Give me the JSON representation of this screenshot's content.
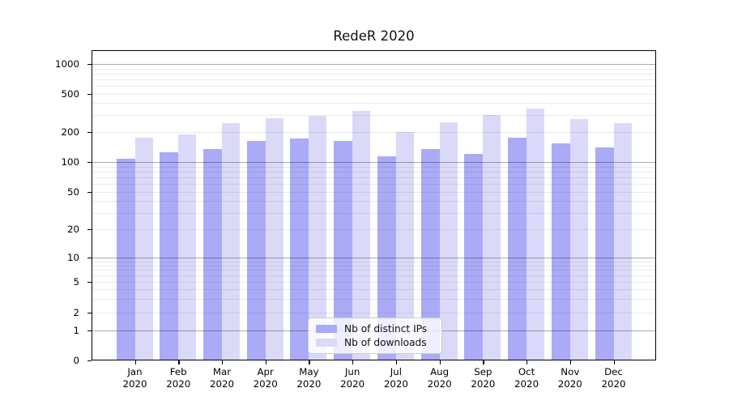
{
  "title": "RedeR 2020",
  "colors": {
    "ips_bar": "#aaaaf7",
    "downloads_bar": "#dadaf8",
    "grid_major": "#adadad",
    "grid_minor": "#ededed",
    "axis": "#000000"
  },
  "legend": {
    "items": [
      {
        "label": "Nb of distinct IPs",
        "color_key": "ips_bar"
      },
      {
        "label": "Nb of downloads",
        "color_key": "downloads_bar"
      }
    ]
  },
  "y_axis": {
    "ticks": [
      {
        "label": "1000",
        "value": 1000
      },
      {
        "label": "500",
        "value": 500
      },
      {
        "label": "200",
        "value": 200
      },
      {
        "label": "100",
        "value": 100
      },
      {
        "label": "50",
        "value": 50
      },
      {
        "label": "20",
        "value": 20
      },
      {
        "label": "10",
        "value": 10
      },
      {
        "label": "5",
        "value": 5
      },
      {
        "label": "2",
        "value": 2
      },
      {
        "label": "1",
        "value": 1
      },
      {
        "label": "0",
        "value": 0
      }
    ],
    "major_grid_values": [
      1,
      10,
      100,
      1000
    ],
    "minor_grid_values": [
      2,
      3,
      4,
      5,
      6,
      7,
      8,
      9,
      20,
      30,
      40,
      50,
      60,
      70,
      80,
      90,
      200,
      300,
      400,
      500,
      600,
      700,
      800,
      900
    ]
  },
  "x_axis": {
    "categories": [
      {
        "month": "Jan",
        "year": "2020"
      },
      {
        "month": "Feb",
        "year": "2020"
      },
      {
        "month": "Mar",
        "year": "2020"
      },
      {
        "month": "Apr",
        "year": "2020"
      },
      {
        "month": "May",
        "year": "2020"
      },
      {
        "month": "Jun",
        "year": "2020"
      },
      {
        "month": "Jul",
        "year": "2020"
      },
      {
        "month": "Aug",
        "year": "2020"
      },
      {
        "month": "Sep",
        "year": "2020"
      },
      {
        "month": "Oct",
        "year": "2020"
      },
      {
        "month": "Nov",
        "year": "2020"
      },
      {
        "month": "Dec",
        "year": "2020"
      }
    ]
  },
  "chart_data": {
    "type": "bar",
    "title": "RedeR 2020",
    "categories": [
      "Jan 2020",
      "Feb 2020",
      "Mar 2020",
      "Apr 2020",
      "May 2020",
      "Jun 2020",
      "Jul 2020",
      "Aug 2020",
      "Sep 2020",
      "Oct 2020",
      "Nov 2020",
      "Dec 2020"
    ],
    "series": [
      {
        "name": "Nb of distinct IPs",
        "values": [
          107,
          125,
          135,
          164,
          171,
          162,
          115,
          134,
          121,
          177,
          155,
          140
        ]
      },
      {
        "name": "Nb of downloads",
        "values": [
          175,
          190,
          250,
          280,
          295,
          330,
          200,
          253,
          303,
          350,
          274,
          250
        ]
      }
    ],
    "xlabel": "",
    "ylabel": "",
    "y_scale": "log-like (symlog); labeled ticks at 0,1,2,5,10,20,50,100,200,500,1000",
    "ylim": [
      0,
      1400
    ],
    "grid": "horizontal only; major gray lines at 1,10,100,1000; faint minor log lines; grid drawn over bars",
    "legend_position": "inside plot, lower center"
  }
}
